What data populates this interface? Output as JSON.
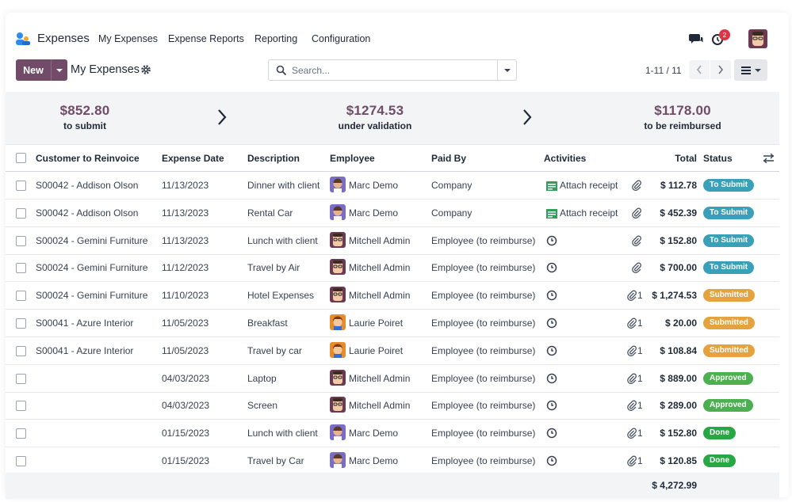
{
  "app": {
    "name": "Expenses"
  },
  "menu": [
    "My Expenses",
    "Expense Reports",
    "Reporting",
    "Configuration"
  ],
  "notifications": {
    "activity_count": "2"
  },
  "control": {
    "new_label": "New",
    "breadcrumb": "My Expenses",
    "search_placeholder": "Search...",
    "pager": "1-11 / 11"
  },
  "summary": [
    {
      "amount": "$852.80",
      "label": "to submit"
    },
    {
      "amount": "$1274.53",
      "label": "under validation"
    },
    {
      "amount": "$1178.00",
      "label": "to be reimbursed"
    }
  ],
  "columns": [
    "Customer to Reinvoice",
    "Expense Date",
    "Description",
    "Employee",
    "Paid By",
    "Activities",
    "Total",
    "Status"
  ],
  "rows": [
    {
      "customer": "S00042 - Addison Olson",
      "date": "11/13/2023",
      "description": "Dinner with client",
      "employee": "Marc Demo",
      "avatar": "marc",
      "paid_by": "Company",
      "activity": "Attach receipt",
      "attachments": "",
      "total": "$ 112.78",
      "status": "To Submit",
      "status_color": "#3a9fb8"
    },
    {
      "customer": "S00042 - Addison Olson",
      "date": "11/13/2023",
      "description": "Rental Car",
      "employee": "Marc Demo",
      "avatar": "marc",
      "paid_by": "Company",
      "activity": "Attach receipt",
      "attachments": "",
      "total": "$ 452.39",
      "status": "To Submit",
      "status_color": "#3a9fb8"
    },
    {
      "customer": "S00024 - Gemini Furniture",
      "date": "11/13/2023",
      "description": "Lunch with client",
      "employee": "Mitchell Admin",
      "avatar": "mitchell",
      "paid_by": "Employee (to reimburse)",
      "activity": "",
      "attachments": "",
      "total": "$ 152.80",
      "status": "To Submit",
      "status_color": "#3a9fb8"
    },
    {
      "customer": "S00024 - Gemini Furniture",
      "date": "11/12/2023",
      "description": "Travel by Air",
      "employee": "Mitchell Admin",
      "avatar": "mitchell",
      "paid_by": "Employee (to reimburse)",
      "activity": "",
      "attachments": "",
      "total": "$ 700.00",
      "status": "To Submit",
      "status_color": "#3a9fb8"
    },
    {
      "customer": "S00024 - Gemini Furniture",
      "date": "11/10/2023",
      "description": "Hotel Expenses",
      "employee": "Mitchell Admin",
      "avatar": "mitchell",
      "paid_by": "Employee (to reimburse)",
      "activity": "",
      "attachments": "1",
      "total": "$ 1,274.53",
      "status": "Submitted",
      "status_color": "#e6a23c"
    },
    {
      "customer": "S00041 - Azure Interior",
      "date": "11/05/2023",
      "description": "Breakfast",
      "employee": "Laurie Poiret",
      "avatar": "laurie",
      "paid_by": "Employee (to reimburse)",
      "activity": "",
      "attachments": "1",
      "total": "$ 20.00",
      "status": "Submitted",
      "status_color": "#e6a23c"
    },
    {
      "customer": "S00041 - Azure Interior",
      "date": "11/05/2023",
      "description": "Travel by car",
      "employee": "Laurie Poiret",
      "avatar": "laurie",
      "paid_by": "Employee (to reimburse)",
      "activity": "",
      "attachments": "1",
      "total": "$ 108.84",
      "status": "Submitted",
      "status_color": "#e6a23c"
    },
    {
      "customer": "",
      "date": "04/03/2023",
      "description": "Laptop",
      "employee": "Mitchell Admin",
      "avatar": "mitchell",
      "paid_by": "Employee (to reimburse)",
      "activity": "",
      "attachments": "1",
      "total": "$ 889.00",
      "status": "Approved",
      "status_color": "#4caf50"
    },
    {
      "customer": "",
      "date": "04/03/2023",
      "description": "Screen",
      "employee": "Mitchell Admin",
      "avatar": "mitchell",
      "paid_by": "Employee (to reimburse)",
      "activity": "",
      "attachments": "1",
      "total": "$ 289.00",
      "status": "Approved",
      "status_color": "#4caf50"
    },
    {
      "customer": "",
      "date": "01/15/2023",
      "description": "Lunch with client",
      "employee": "Marc Demo",
      "avatar": "marc",
      "paid_by": "Employee (to reimburse)",
      "activity": "",
      "attachments": "1",
      "total": "$ 152.80",
      "status": "Done",
      "status_color": "#28a745"
    },
    {
      "customer": "",
      "date": "01/15/2023",
      "description": "Travel by Car",
      "employee": "Marc Demo",
      "avatar": "marc",
      "paid_by": "Employee (to reimburse)",
      "activity": "",
      "attachments": "1",
      "total": "$ 120.85",
      "status": "Done",
      "status_color": "#28a745"
    }
  ],
  "footer": {
    "total": "$ 4,272.99"
  },
  "colors": {
    "brand": "#714b67",
    "accent_teal": "#017e84"
  }
}
